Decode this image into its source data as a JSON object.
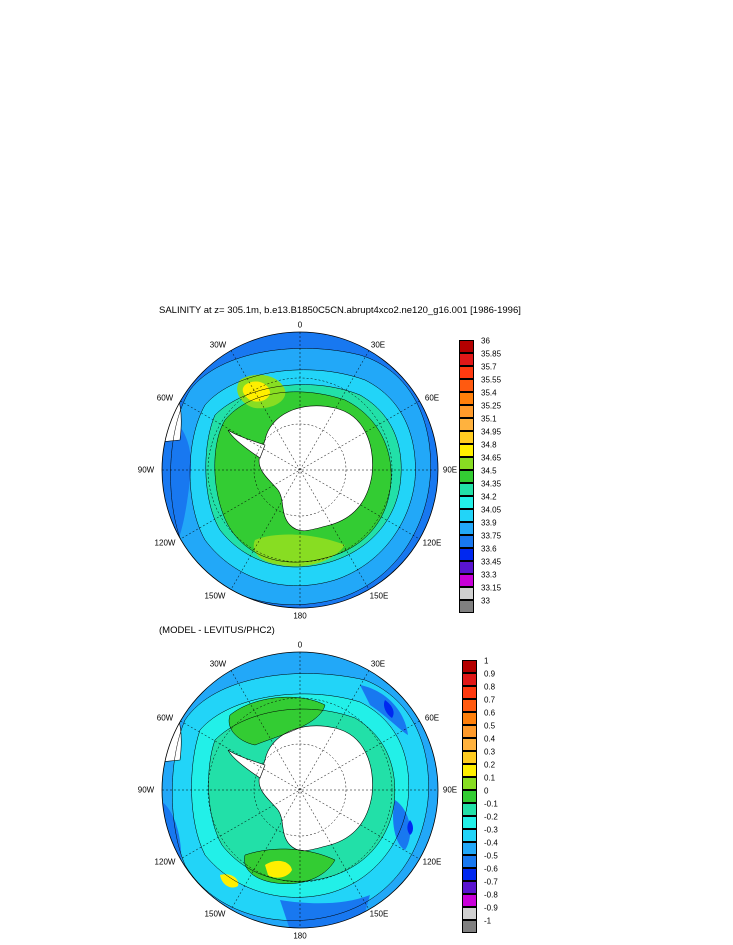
{
  "panels": [
    {
      "title": "SALINITY at z= 305.1m, b.e13.B1850C5CN.abrupt4xco2.ne120_g16.001 [1986-1996]",
      "lon_labels": {
        "n": "0",
        "nne": "30E",
        "ene": "60E",
        "e": "90E",
        "ese": "120E",
        "sse": "150E",
        "s": "180",
        "ssw": "150W",
        "wsw": "120W",
        "w": "90W",
        "wnw": "60W",
        "nnw": "30W"
      },
      "colorbar": {
        "labels": [
          "36",
          "35.85",
          "35.7",
          "35.55",
          "35.4",
          "35.25",
          "35.1",
          "34.95",
          "34.8",
          "34.65",
          "34.5",
          "34.35",
          "34.2",
          "34.05",
          "33.9",
          "33.75",
          "33.6",
          "33.45",
          "33.3",
          "33.15",
          "33"
        ],
        "colors": [
          "#b40000",
          "#e01818",
          "#ff3a10",
          "#ff5a10",
          "#ff7f0a",
          "#ff9a2a",
          "#ffb23e",
          "#ffcc20",
          "#ffef00",
          "#88dd22",
          "#33cc33",
          "#22e0a8",
          "#22f0e8",
          "#22d4f8",
          "#22a8f8",
          "#1878f0",
          "#0028f0",
          "#5a14d0",
          "#c800d8",
          "#d0d0d0",
          "#808080"
        ]
      }
    },
    {
      "title": "(MODEL - LEVITUS/PHC2)",
      "lon_labels": {
        "n": "0",
        "nne": "30E",
        "ene": "60E",
        "e": "90E",
        "ese": "120E",
        "sse": "150E",
        "s": "180",
        "ssw": "150W",
        "wsw": "120W",
        "w": "90W",
        "wnw": "60W",
        "nnw": "30W"
      },
      "colorbar": {
        "labels": [
          "1",
          "0.9",
          "0.8",
          "0.7",
          "0.6",
          "0.5",
          "0.4",
          "0.3",
          "0.2",
          "0.1",
          "0",
          "-0.1",
          "-0.2",
          "-0.3",
          "-0.4",
          "-0.5",
          "-0.6",
          "-0.7",
          "-0.8",
          "-0.9",
          "-1"
        ],
        "colors": [
          "#b40000",
          "#e01818",
          "#ff3a10",
          "#ff5a10",
          "#ff7f0a",
          "#ff9a2a",
          "#ffb23e",
          "#ffcc20",
          "#ffef00",
          "#88dd22",
          "#33cc33",
          "#22e0a8",
          "#22f0e8",
          "#22d4f8",
          "#22a8f8",
          "#1878f0",
          "#0028f0",
          "#5a14d0",
          "#c800d8",
          "#d0d0d0",
          "#808080"
        ]
      }
    }
  ]
}
